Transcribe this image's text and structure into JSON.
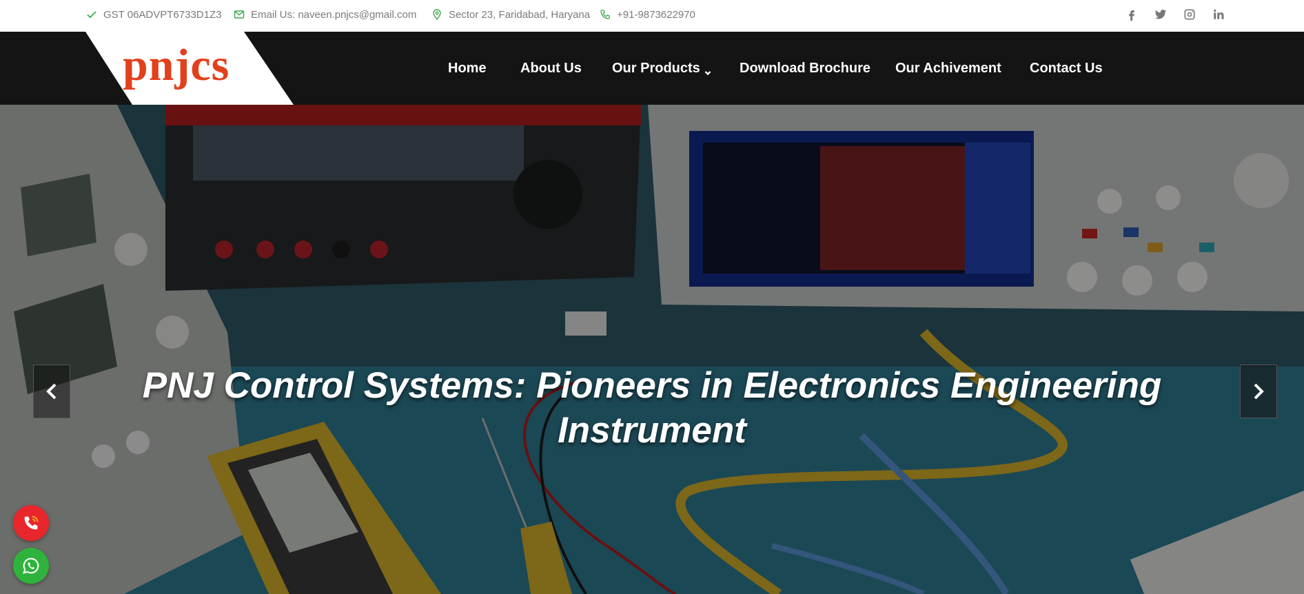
{
  "topbar": {
    "gst": "GST 06ADVPT6733D1Z3",
    "email": "Email Us: naveen.pnjcs@gmail.com",
    "address": "Sector 23, Faridabad, Haryana",
    "phone": "+91-9873622970",
    "social": [
      "facebook-icon",
      "twitter-icon",
      "instagram-icon",
      "linkedin-icon"
    ]
  },
  "brand": {
    "logo": "pnjcs",
    "color": "#e2401c"
  },
  "nav": {
    "home": "Home",
    "about": "About Us",
    "products": "Our Products",
    "brochure": "Download Brochure",
    "achievement": "Our Achivement",
    "contact": "Contact Us"
  },
  "hero": {
    "line1": "PNJ Control Systems: Pioneers in Electronics Engineering",
    "line2": "Instrument"
  },
  "colors": {
    "accent_green": "#3aa845",
    "header_bg": "#141414",
    "call_red": "#e8262b",
    "whatsapp_green": "#2fb33c"
  }
}
